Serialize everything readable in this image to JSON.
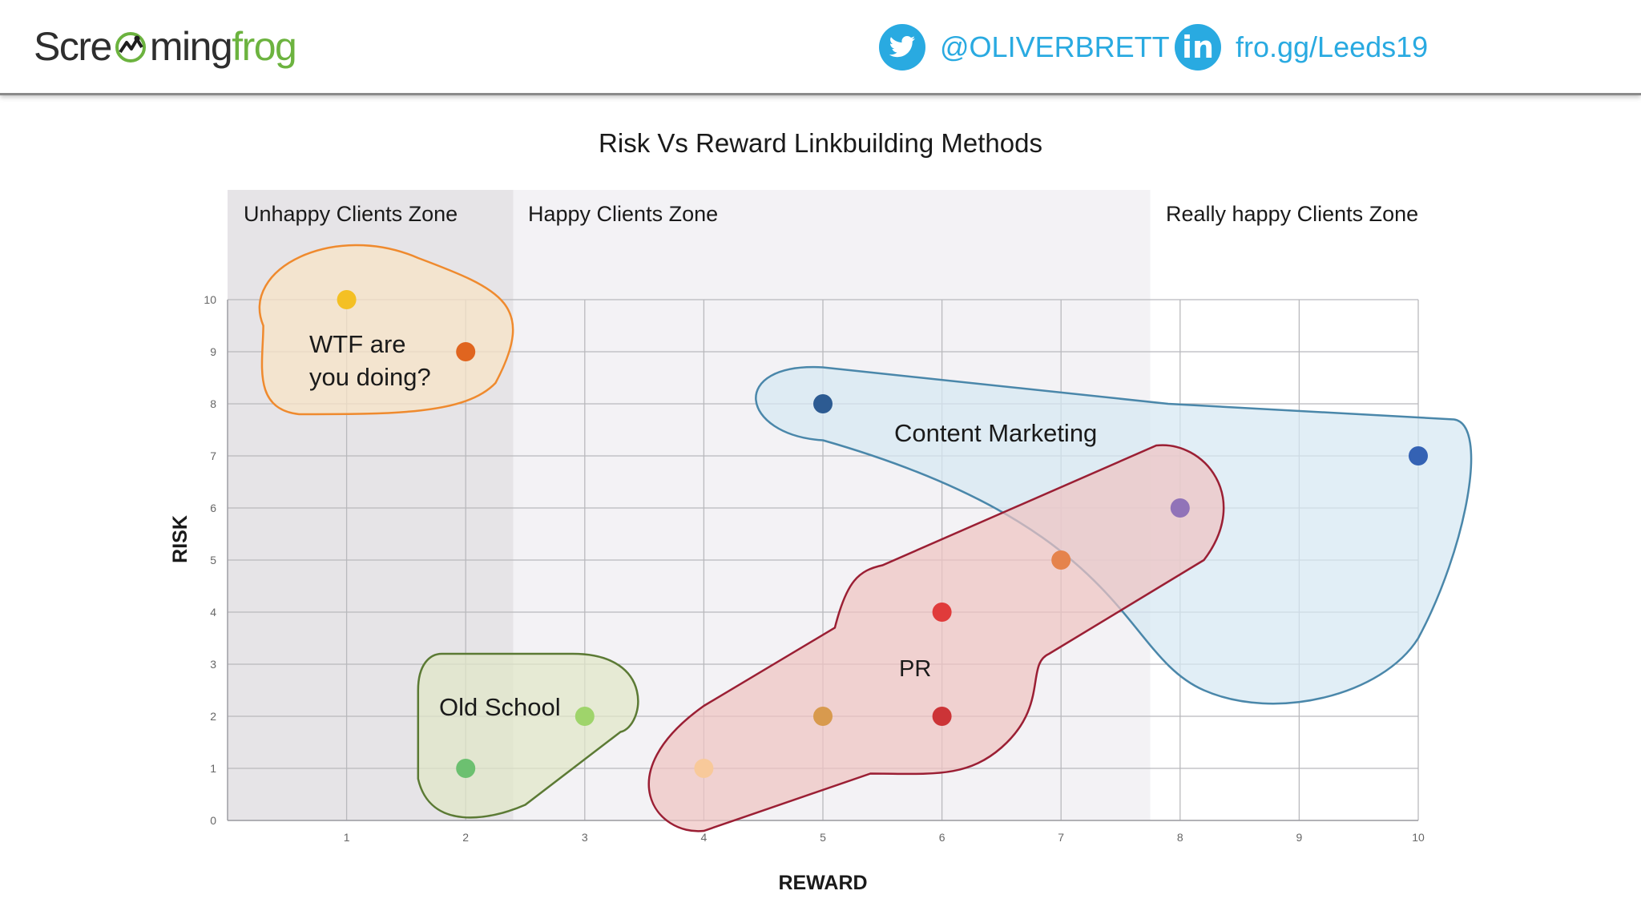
{
  "header": {
    "logo": {
      "part1": "Scre",
      "part2": "ming",
      "part3": "frog"
    },
    "twitter": {
      "icon": "twitter-bird-icon",
      "handle": "@OLIVERBRETT"
    },
    "linkedin": {
      "icon": "linkedin-icon",
      "icon_text": "in",
      "link": "fro.gg/Leeds19"
    },
    "colors": {
      "twitter": "#29aae1",
      "logo_green": "#6cb33f",
      "logo_dark": "#2e2e2e"
    }
  },
  "chart_data": {
    "type": "scatter",
    "title": "Risk Vs Reward Linkbuilding Methods",
    "xlabel": "REWARD",
    "ylabel": "RISK",
    "xlim": [
      0,
      10
    ],
    "ylim": [
      0,
      10
    ],
    "x_ticks": [
      1,
      2,
      3,
      4,
      5,
      6,
      7,
      8,
      9,
      10
    ],
    "y_ticks": [
      0,
      1,
      2,
      3,
      4,
      5,
      6,
      7,
      8,
      9,
      10
    ],
    "grid": true,
    "zones": [
      {
        "label": "Unhappy Clients Zone",
        "x_range": [
          0,
          2.4
        ],
        "color": "#e6e4e7"
      },
      {
        "label": "Happy Clients Zone",
        "x_range": [
          2.4,
          7.75
        ],
        "color": "#f3f2f5"
      },
      {
        "label": "Really happy Clients Zone",
        "x_range": [
          7.75,
          10
        ],
        "color": "#ffffff"
      }
    ],
    "points": [
      {
        "x": 1,
        "y": 10,
        "color": "#f4c024"
      },
      {
        "x": 2,
        "y": 9,
        "color": "#e0651f"
      },
      {
        "x": 5,
        "y": 8,
        "color": "#2d5b92"
      },
      {
        "x": 10,
        "y": 7,
        "color": "#3462b4"
      },
      {
        "x": 8,
        "y": 6,
        "color": "#9173b8"
      },
      {
        "x": 7,
        "y": 5,
        "color": "#e5834c"
      },
      {
        "x": 6,
        "y": 4,
        "color": "#e03b3b"
      },
      {
        "x": 6,
        "y": 2,
        "color": "#cc3437"
      },
      {
        "x": 5,
        "y": 2,
        "color": "#d89a4e"
      },
      {
        "x": 4,
        "y": 1,
        "color": "#f8c99a"
      },
      {
        "x": 3,
        "y": 2,
        "color": "#9fd46b"
      },
      {
        "x": 2,
        "y": 1,
        "color": "#6cc070"
      }
    ],
    "groups": [
      {
        "label": "WTF are you doing?",
        "lines": [
          "WTF are",
          "you doing?"
        ],
        "stroke": "#ef8a2e",
        "fill": "#f8e3c6"
      },
      {
        "label": "Content Marketing",
        "lines": [
          "Content Marketing"
        ],
        "stroke": "#4a87aa",
        "fill": "#d6e7f3"
      },
      {
        "label": "PR",
        "lines": [
          "PR"
        ],
        "stroke": "#9b1f34",
        "fill": "#eec4c2"
      },
      {
        "label": "Old School",
        "lines": [
          "Old School"
        ],
        "stroke": "#5b7a34",
        "fill": "#e0e6c7"
      }
    ]
  }
}
